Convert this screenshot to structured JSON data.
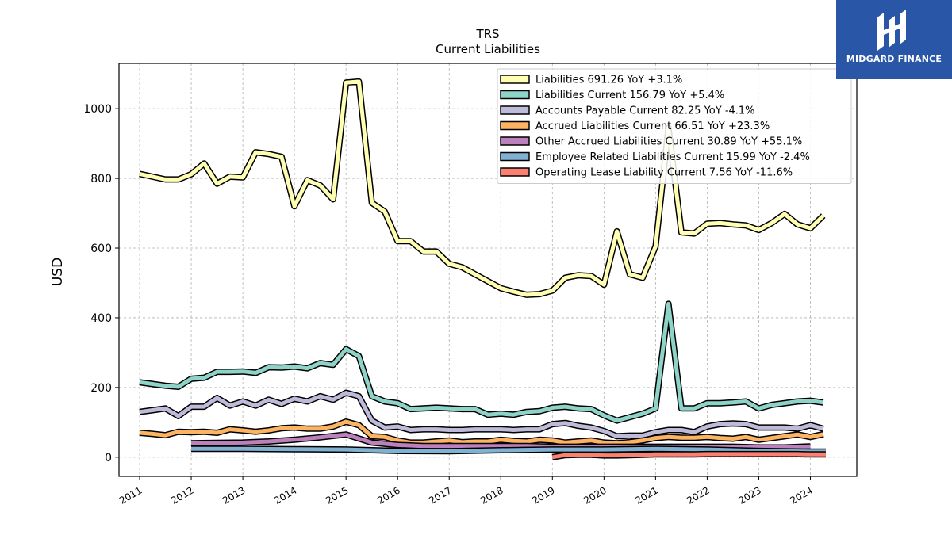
{
  "chart_data": {
    "type": "line",
    "title": "TRS",
    "subtitle": "Current  Liabilities",
    "ylabel": "USD",
    "xlabel": "",
    "xlim": [
      2010.6,
      2024.9
    ],
    "ylim": [
      -55,
      1130
    ],
    "yticks": [
      0,
      200,
      400,
      600,
      800,
      1000
    ],
    "xticks": [
      2011,
      2012,
      2013,
      2014,
      2015,
      2016,
      2017,
      2018,
      2019,
      2020,
      2021,
      2022,
      2023,
      2024
    ],
    "grid": true,
    "legend_position": "top-right",
    "series": [
      {
        "name": "Liabilities",
        "legend": "Liabilities  691.26 YoY +3.1%",
        "color": "#ffffb3",
        "x": [
          2011.0,
          2011.25,
          2011.5,
          2011.75,
          2012.0,
          2012.25,
          2012.5,
          2012.75,
          2013.0,
          2013.25,
          2013.5,
          2013.75,
          2014.0,
          2014.25,
          2014.5,
          2014.75,
          2015.0,
          2015.25,
          2015.5,
          2015.75,
          2016.0,
          2016.25,
          2016.5,
          2016.75,
          2017.0,
          2017.25,
          2017.5,
          2017.75,
          2018.0,
          2018.25,
          2018.5,
          2018.75,
          2019.0,
          2019.25,
          2019.5,
          2019.75,
          2020.0,
          2020.25,
          2020.5,
          2020.75,
          2021.0,
          2021.25,
          2021.5,
          2021.75,
          2022.0,
          2022.25,
          2022.5,
          2022.75,
          2023.0,
          2023.25,
          2023.5,
          2023.75,
          2024.0,
          2024.25
        ],
        "y": [
          813,
          805,
          797,
          797,
          812,
          843,
          785,
          805,
          803,
          875,
          870,
          862,
          720,
          795,
          780,
          740,
          1075,
          1078,
          730,
          705,
          620,
          620,
          590,
          590,
          555,
          545,
          525,
          505,
          485,
          475,
          466,
          468,
          478,
          515,
          522,
          520,
          495,
          648,
          525,
          515,
          605,
          945,
          645,
          642,
          670,
          672,
          668,
          665,
          652,
          672,
          698,
          668,
          657,
          693
        ]
      },
      {
        "name": "Liabilities Current",
        "legend": "Liabilities Current  156.79 YoY +5.4%",
        "color": "#8dd3c7",
        "x": [
          2011.0,
          2011.25,
          2011.5,
          2011.75,
          2012.0,
          2012.25,
          2012.5,
          2012.75,
          2013.0,
          2013.25,
          2013.5,
          2013.75,
          2014.0,
          2014.25,
          2014.5,
          2014.75,
          2015.0,
          2015.25,
          2015.5,
          2015.75,
          2016.0,
          2016.25,
          2016.5,
          2016.75,
          2017.0,
          2017.25,
          2017.5,
          2017.75,
          2018.0,
          2018.25,
          2018.5,
          2018.75,
          2019.0,
          2019.25,
          2019.5,
          2019.75,
          2020.0,
          2020.25,
          2020.5,
          2020.75,
          2021.0,
          2021.25,
          2021.5,
          2021.75,
          2022.0,
          2022.25,
          2022.5,
          2022.75,
          2023.0,
          2023.25,
          2023.5,
          2023.75,
          2024.0,
          2024.25
        ],
        "y": [
          215,
          210,
          205,
          202,
          225,
          228,
          245,
          245,
          246,
          242,
          258,
          257,
          260,
          255,
          270,
          265,
          310,
          290,
          175,
          160,
          155,
          138,
          140,
          142,
          140,
          138,
          138,
          122,
          125,
          122,
          130,
          132,
          142,
          145,
          140,
          138,
          120,
          105,
          115,
          125,
          140,
          440,
          140,
          140,
          155,
          155,
          157,
          160,
          140,
          150,
          155,
          160,
          162,
          157
        ]
      },
      {
        "name": "Accounts Payable Current",
        "legend": "Accounts Payable Current  82.25 YoY -4.1%",
        "color": "#bebada",
        "x": [
          2011.0,
          2011.25,
          2011.5,
          2011.75,
          2012.0,
          2012.25,
          2012.5,
          2012.75,
          2013.0,
          2013.25,
          2013.5,
          2013.75,
          2014.0,
          2014.25,
          2014.5,
          2014.75,
          2015.0,
          2015.25,
          2015.5,
          2015.75,
          2016.0,
          2016.25,
          2016.5,
          2016.75,
          2017.0,
          2017.25,
          2017.5,
          2017.75,
          2018.0,
          2018.25,
          2018.5,
          2018.75,
          2019.0,
          2019.25,
          2019.5,
          2019.75,
          2020.0,
          2020.25,
          2020.5,
          2020.75,
          2021.0,
          2021.25,
          2021.5,
          2021.75,
          2022.0,
          2022.25,
          2022.5,
          2022.75,
          2023.0,
          2023.25,
          2023.5,
          2023.75,
          2024.0,
          2024.25
        ],
        "y": [
          130,
          135,
          140,
          118,
          145,
          145,
          170,
          148,
          160,
          148,
          165,
          153,
          168,
          160,
          175,
          165,
          185,
          175,
          105,
          85,
          88,
          78,
          80,
          80,
          78,
          78,
          80,
          80,
          80,
          78,
          80,
          80,
          95,
          98,
          90,
          85,
          75,
          60,
          62,
          62,
          72,
          78,
          78,
          72,
          88,
          95,
          97,
          95,
          85,
          85,
          85,
          82,
          92,
          82
        ]
      },
      {
        "name": "Accrued Liabilities Current",
        "legend": "Accrued Liabilities Current  66.51 YoY +23.3%",
        "color": "#fdb462",
        "x": [
          2011.0,
          2011.25,
          2011.5,
          2011.75,
          2012.0,
          2012.25,
          2012.5,
          2012.75,
          2013.0,
          2013.25,
          2013.5,
          2013.75,
          2014.0,
          2014.25,
          2014.5,
          2014.75,
          2015.0,
          2015.25,
          2015.5,
          2015.75,
          2016.0,
          2016.25,
          2016.5,
          2016.75,
          2017.0,
          2017.25,
          2017.5,
          2017.75,
          2018.0,
          2018.25,
          2018.5,
          2018.75,
          2019.0,
          2019.25,
          2019.5,
          2019.75,
          2020.0,
          2020.25,
          2020.5,
          2020.75,
          2021.0,
          2021.25,
          2021.5,
          2021.75,
          2022.0,
          2022.25,
          2022.5,
          2022.75,
          2023.0,
          2023.25,
          2023.5,
          2023.75,
          2024.0,
          2024.25
        ],
        "y": [
          70,
          67,
          63,
          73,
          72,
          73,
          70,
          80,
          77,
          73,
          77,
          83,
          85,
          82,
          82,
          88,
          102,
          92,
          60,
          58,
          48,
          42,
          42,
          45,
          48,
          43,
          45,
          45,
          50,
          47,
          45,
          50,
          48,
          42,
          45,
          48,
          42,
          40,
          43,
          48,
          55,
          58,
          56,
          56,
          58,
          55,
          53,
          58,
          50,
          55,
          60,
          65,
          58,
          66
        ]
      },
      {
        "name": "Other Accrued Liabilities Current",
        "legend": "Other Accrued Liabilities Current  30.89 YoY +55.1%",
        "color": "#bc80bd",
        "x": [
          2012.0,
          2012.5,
          2013.0,
          2013.5,
          2014.0,
          2014.5,
          2015.0,
          2015.5,
          2016.0,
          2016.5,
          2017.0,
          2017.5,
          2018.0,
          2018.5,
          2019.0,
          2019.5,
          2020.0,
          2020.5,
          2021.0,
          2021.5,
          2022.0,
          2022.5,
          2023.0,
          2023.5,
          2024.0
        ],
        "y": [
          40,
          41,
          42,
          45,
          50,
          57,
          65,
          42,
          35,
          32,
          32,
          32,
          32,
          32,
          30,
          30,
          30,
          30,
          30,
          30,
          30,
          30,
          28,
          28,
          31
        ]
      },
      {
        "name": "Employee Related Liabilities Current",
        "legend": "Employee Related Liabilities Current  15.99 YoY -2.4%",
        "color": "#80b1d3",
        "x": [
          2012.0,
          2013.0,
          2014.0,
          2015.0,
          2016.0,
          2017.0,
          2018.0,
          2019.0,
          2020.0,
          2021.0,
          2022.0,
          2023.0,
          2024.0,
          2024.3
        ],
        "y": [
          24,
          24,
          23,
          22,
          18,
          17,
          20,
          22,
          22,
          24,
          22,
          18,
          16,
          16
        ]
      },
      {
        "name": "Operating Lease Liability Current",
        "legend": "Operating Lease Liability Current  7.56 YoY -11.6%",
        "color": "#fb8072",
        "x": [
          2019.0,
          2019.25,
          2019.5,
          2019.75,
          2020.0,
          2020.25,
          2020.5,
          2020.75,
          2021.0,
          2021.25,
          2021.5,
          2021.75,
          2022.0,
          2022.25,
          2022.5,
          2022.75,
          2023.0,
          2023.25,
          2023.5,
          2023.75,
          2024.0,
          2024.3
        ],
        "y": [
          0,
          6,
          7,
          7,
          5,
          5,
          6,
          7,
          8,
          8,
          8,
          8,
          9,
          9,
          9,
          9,
          9,
          9,
          9,
          9,
          8,
          8
        ]
      }
    ]
  },
  "logo": {
    "text": "MIDGARD FINANCE",
    "background": "#2a56a8"
  }
}
